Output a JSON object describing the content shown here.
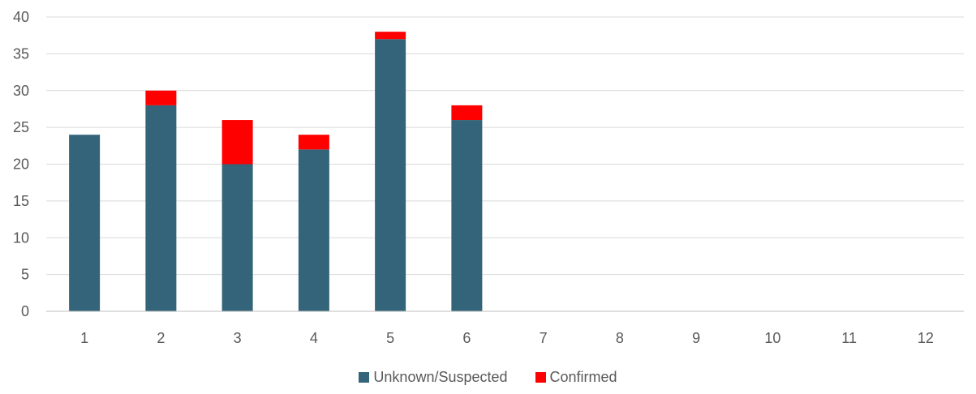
{
  "chart_data": {
    "type": "bar",
    "stacked": true,
    "categories": [
      "1",
      "2",
      "3",
      "4",
      "5",
      "6",
      "7",
      "8",
      "9",
      "10",
      "11",
      "12"
    ],
    "series": [
      {
        "name": "Unknown/Suspected",
        "color": "#336479",
        "values": [
          24,
          28,
          20,
          22,
          37,
          26,
          null,
          null,
          null,
          null,
          null,
          null
        ]
      },
      {
        "name": "Confirmed",
        "color": "#ff0000",
        "values": [
          0,
          2,
          6,
          2,
          1,
          2,
          null,
          null,
          null,
          null,
          null,
          null
        ]
      }
    ],
    "ylim": [
      0,
      40
    ],
    "yticks": [
      "0",
      "5",
      "10",
      "15",
      "20",
      "25",
      "30",
      "35",
      "40"
    ],
    "grid": true,
    "legend_position": "bottom",
    "title": "",
    "xlabel": "",
    "ylabel": ""
  }
}
